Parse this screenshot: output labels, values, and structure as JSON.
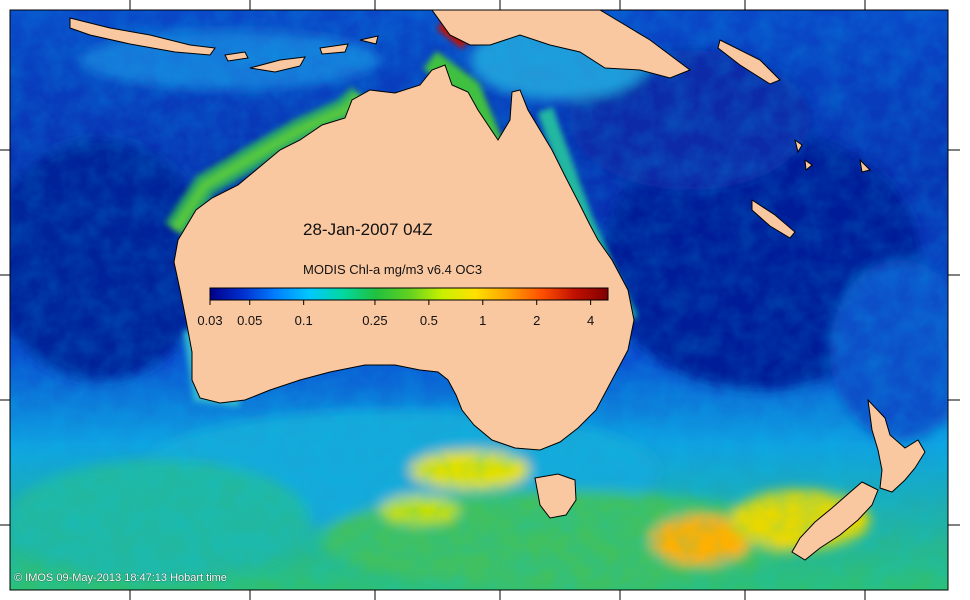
{
  "map": {
    "date_label": "28-Jan-2007 04Z",
    "legend": {
      "title": "MODIS Chl-a mg/m3 v6.4 OC3",
      "ticks": [
        {
          "label": "0.03",
          "value": 0.03
        },
        {
          "label": "0.05",
          "value": 0.05
        },
        {
          "label": "0.1",
          "value": 0.1
        },
        {
          "label": "0.25",
          "value": 0.25
        },
        {
          "label": "0.5",
          "value": 0.5
        },
        {
          "label": "1",
          "value": 1
        },
        {
          "label": "2",
          "value": 2
        },
        {
          "label": "4",
          "value": 4
        }
      ],
      "range": [
        0.03,
        5
      ],
      "scale": "log",
      "colormap": [
        "#00008a",
        "#0030d0",
        "#0080ff",
        "#00c8ff",
        "#00d8a0",
        "#20c040",
        "#60d020",
        "#c8f000",
        "#ffe000",
        "#ffa000",
        "#ff5000",
        "#c01000",
        "#800000"
      ]
    },
    "footer": "© IMOS 09-May-2013 18:47:13 Hobart time",
    "colors": {
      "land": "#fac8a0",
      "coastline": "#000000",
      "ocean_low": "#0018a8",
      "ocean_mid": "#0090e8",
      "ocean_high": "#30c070"
    }
  }
}
